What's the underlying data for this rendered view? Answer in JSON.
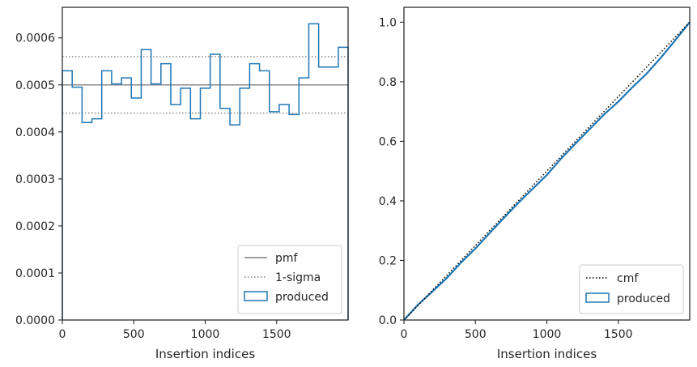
{
  "chart_data": [
    {
      "type": "step",
      "xlabel": "Insertion indices",
      "ylabel": "",
      "xlim": [
        0,
        2000
      ],
      "ylim": [
        0,
        0.000665
      ],
      "xticks": [
        0,
        500,
        1000,
        1500
      ],
      "xtick_labels": [
        "0",
        "500",
        "1000",
        "1500"
      ],
      "yticks": [
        0,
        0.0001,
        0.0002,
        0.0003,
        0.0004,
        0.0005,
        0.0006
      ],
      "ytick_labels": [
        "0.0000",
        "0.0001",
        "0.0002",
        "0.0003",
        "0.0004",
        "0.0005",
        "0.0006"
      ],
      "legend_position": "lower-right",
      "hlines": [
        {
          "name": "pmf",
          "y": 0.0005,
          "style": "solid",
          "color": "#808080"
        },
        {
          "name": "1-sigma",
          "y": 0.00056,
          "style": "dotted",
          "color": "#808080"
        },
        {
          "name": "1-sigma",
          "y": 0.00044,
          "style": "dotted",
          "color": "#808080"
        }
      ],
      "series": [
        {
          "name": "produced",
          "color": "#1f77b4",
          "bin_edges": [
            0,
            69,
            138,
            207,
            276,
            345,
            414,
            483,
            552,
            621,
            690,
            759,
            828,
            897,
            966,
            1035,
            1104,
            1173,
            1242,
            1311,
            1380,
            1449,
            1518,
            1587,
            1656,
            1725,
            1794,
            1863,
            1932,
            2000
          ],
          "values": [
            0.00053,
            0.000495,
            0.00042,
            0.000428,
            0.00053,
            0.000502,
            0.000515,
            0.000472,
            0.000575,
            0.000502,
            0.000545,
            0.000458,
            0.000493,
            0.000428,
            0.000493,
            0.000565,
            0.00045,
            0.000415,
            0.000493,
            0.000545,
            0.00053,
            0.000443,
            0.000458,
            0.000437,
            0.000515,
            0.00063,
            0.000538,
            0.000538,
            0.00058
          ]
        }
      ],
      "legend": [
        "pmf",
        "1-sigma",
        "produced"
      ]
    },
    {
      "type": "line",
      "xlabel": "Insertion indices",
      "ylabel": "",
      "xlim": [
        0,
        2000
      ],
      "ylim": [
        0,
        1.05
      ],
      "xticks": [
        0,
        500,
        1000,
        1500
      ],
      "xtick_labels": [
        "0",
        "500",
        "1000",
        "1500"
      ],
      "yticks": [
        0,
        0.2,
        0.4,
        0.6,
        0.8,
        1.0
      ],
      "ytick_labels": [
        "0.0",
        "0.2",
        "0.4",
        "0.6",
        "0.8",
        "1.0"
      ],
      "legend_position": "lower-right",
      "series": [
        {
          "name": "cmf",
          "style": "dotted",
          "color": "#000000",
          "x": [
            0,
            2000
          ],
          "y": [
            0,
            1.0
          ]
        },
        {
          "name": "produced",
          "style": "solid",
          "color": "#1f77b4",
          "x": [
            0,
            100,
            200,
            300,
            400,
            500,
            600,
            700,
            800,
            900,
            1000,
            1100,
            1200,
            1300,
            1400,
            1500,
            1600,
            1700,
            1800,
            1900,
            2000
          ],
          "y": [
            0,
            0.052,
            0.096,
            0.141,
            0.193,
            0.24,
            0.292,
            0.343,
            0.393,
            0.44,
            0.487,
            0.542,
            0.592,
            0.641,
            0.69,
            0.733,
            0.782,
            0.828,
            0.882,
            0.94,
            1.0
          ]
        }
      ],
      "legend": [
        "cmf",
        "produced"
      ]
    }
  ]
}
